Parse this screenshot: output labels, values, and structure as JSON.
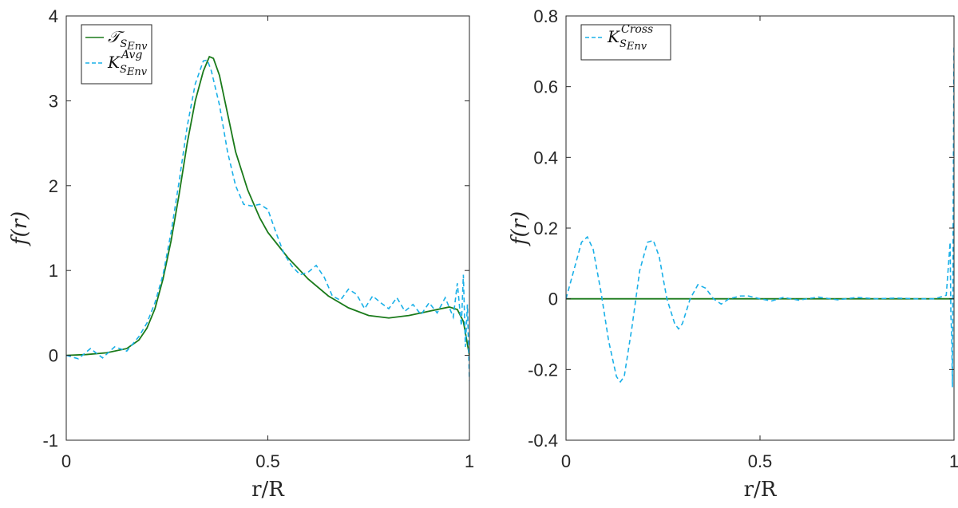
{
  "chart_data": [
    {
      "type": "line",
      "xlabel": "r/R",
      "ylabel": "f(r)",
      "xlim": [
        0,
        1
      ],
      "ylim": [
        -1,
        4
      ],
      "xticks": [
        0,
        0.5,
        1
      ],
      "xtick_labels": [
        "0",
        "0.5",
        "1"
      ],
      "yticks": [
        -1,
        0,
        1,
        2,
        3,
        4
      ],
      "ytick_labels": [
        "-1",
        "0",
        "1",
        "2",
        "3",
        "4"
      ],
      "grid": false,
      "legend_position": "top-left",
      "series": [
        {
          "name": "𝒯",
          "name_sub": "S",
          "name_subsub": "Env",
          "name_sup": "",
          "style": "solid",
          "color": "#1a7a1a",
          "x": [
            0,
            0.05,
            0.1,
            0.15,
            0.18,
            0.2,
            0.22,
            0.24,
            0.26,
            0.28,
            0.3,
            0.32,
            0.34,
            0.355,
            0.365,
            0.38,
            0.4,
            0.42,
            0.45,
            0.48,
            0.5,
            0.55,
            0.6,
            0.65,
            0.7,
            0.75,
            0.8,
            0.85,
            0.9,
            0.95,
            0.97,
            0.985,
            1.0
          ],
          "y": [
            0,
            0.01,
            0.03,
            0.08,
            0.18,
            0.32,
            0.55,
            0.9,
            1.35,
            1.9,
            2.5,
            3.0,
            3.35,
            3.52,
            3.5,
            3.3,
            2.85,
            2.4,
            1.95,
            1.62,
            1.45,
            1.15,
            0.9,
            0.7,
            0.56,
            0.47,
            0.44,
            0.47,
            0.52,
            0.57,
            0.54,
            0.4,
            0.0
          ]
        },
        {
          "name": "K",
          "name_sub": "S",
          "name_subsub": "Env",
          "name_sup": "Avg",
          "style": "dashed",
          "color": "#1ab0e8",
          "x": [
            0,
            0.03,
            0.06,
            0.09,
            0.12,
            0.15,
            0.18,
            0.2,
            0.22,
            0.24,
            0.26,
            0.28,
            0.3,
            0.32,
            0.34,
            0.35,
            0.36,
            0.38,
            0.4,
            0.42,
            0.44,
            0.46,
            0.48,
            0.5,
            0.52,
            0.54,
            0.56,
            0.58,
            0.6,
            0.62,
            0.64,
            0.66,
            0.68,
            0.7,
            0.72,
            0.74,
            0.76,
            0.78,
            0.8,
            0.82,
            0.84,
            0.86,
            0.88,
            0.9,
            0.92,
            0.94,
            0.96,
            0.97,
            0.98,
            0.985,
            0.99,
            0.995,
            1.0
          ],
          "y": [
            0,
            -0.04,
            0.08,
            -0.03,
            0.1,
            0.05,
            0.22,
            0.38,
            0.62,
            0.95,
            1.45,
            2.05,
            2.7,
            3.2,
            3.47,
            3.48,
            3.35,
            2.95,
            2.4,
            2.0,
            1.78,
            1.76,
            1.78,
            1.72,
            1.45,
            1.2,
            1.05,
            0.95,
            0.98,
            1.06,
            0.92,
            0.7,
            0.65,
            0.78,
            0.72,
            0.55,
            0.7,
            0.62,
            0.55,
            0.68,
            0.52,
            0.6,
            0.48,
            0.62,
            0.5,
            0.68,
            0.45,
            0.85,
            0.35,
            0.95,
            0.1,
            0.6,
            -0.3
          ]
        }
      ]
    },
    {
      "type": "line",
      "xlabel": "r/R",
      "ylabel": "f(r)",
      "xlim": [
        0,
        1
      ],
      "ylim": [
        -0.4,
        0.8
      ],
      "xticks": [
        0,
        0.5,
        1
      ],
      "xtick_labels": [
        "0",
        "0.5",
        "1"
      ],
      "yticks": [
        -0.4,
        -0.2,
        0,
        0.2,
        0.4,
        0.6,
        0.8
      ],
      "ytick_labels": [
        "-0.4",
        "-0.2",
        "0",
        "0.2",
        "0.4",
        "0.6",
        "0.8"
      ],
      "grid": false,
      "legend_position": "top-left",
      "series": [
        {
          "name": "",
          "style": "solid",
          "color": "#1a7a1a",
          "x": [
            0,
            1
          ],
          "y": [
            0,
            0
          ]
        },
        {
          "name": "K",
          "name_sub": "S",
          "name_subsub": "Env",
          "name_sup": "Cross",
          "style": "dashed",
          "color": "#1ab0e8",
          "x": [
            0,
            0.02,
            0.04,
            0.055,
            0.07,
            0.09,
            0.11,
            0.13,
            0.14,
            0.15,
            0.17,
            0.19,
            0.21,
            0.225,
            0.24,
            0.26,
            0.28,
            0.29,
            0.3,
            0.32,
            0.34,
            0.36,
            0.38,
            0.4,
            0.42,
            0.45,
            0.47,
            0.5,
            0.53,
            0.56,
            0.6,
            0.65,
            0.7,
            0.75,
            0.8,
            0.85,
            0.9,
            0.95,
            0.98,
            0.99,
            0.992,
            0.994,
            0.996,
            0.998,
            1.0
          ],
          "y": [
            0,
            0.08,
            0.16,
            0.175,
            0.14,
            0.02,
            -0.12,
            -0.22,
            -0.235,
            -0.22,
            -0.08,
            0.08,
            0.16,
            0.165,
            0.12,
            0.0,
            -0.07,
            -0.085,
            -0.07,
            0.0,
            0.04,
            0.03,
            0.0,
            -0.015,
            0.0,
            0.008,
            0.008,
            0.0,
            -0.006,
            0.004,
            -0.004,
            0.005,
            -0.003,
            0.004,
            0.0,
            0.002,
            0.0,
            0.0,
            0.01,
            0.16,
            -0.05,
            -0.1,
            -0.25,
            0.3,
            0.72
          ]
        }
      ]
    }
  ]
}
